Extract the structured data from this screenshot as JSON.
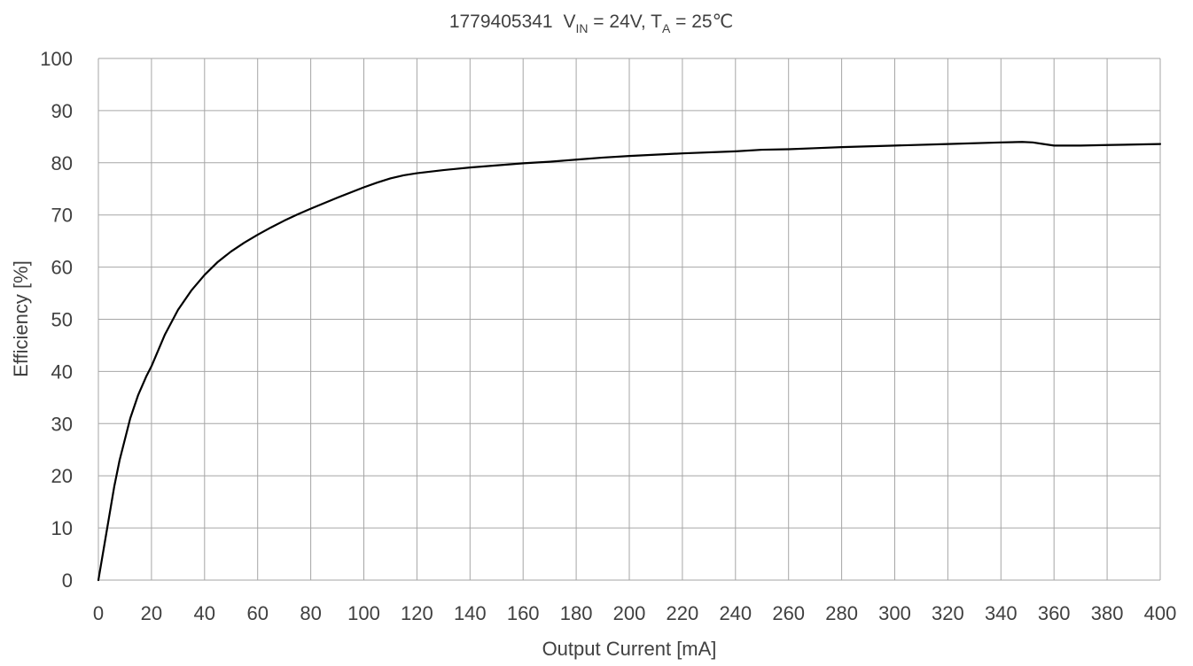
{
  "chart_data": {
    "type": "line",
    "title": {
      "id": "1779405341",
      "v_label": "V",
      "v_sub": "IN",
      "v_value": " = 24V, ",
      "t_label": "T",
      "t_sub": "A",
      "t_value": " = 25℃"
    },
    "xlabel": "Output Current [mA]",
    "ylabel": "Efficiency [%]",
    "xlim": [
      0,
      400
    ],
    "ylim": [
      0,
      100
    ],
    "x_ticks": [
      0,
      20,
      40,
      60,
      80,
      100,
      120,
      140,
      160,
      180,
      200,
      220,
      240,
      260,
      280,
      300,
      320,
      340,
      360,
      380,
      400
    ],
    "y_ticks": [
      0,
      10,
      20,
      30,
      40,
      50,
      60,
      70,
      80,
      90,
      100
    ],
    "grid": true,
    "series": [
      {
        "color": "#000000",
        "x": [
          0,
          2,
          4,
          6,
          8,
          10,
          12,
          15,
          18,
          20,
          25,
          30,
          35,
          40,
          45,
          50,
          55,
          60,
          65,
          70,
          75,
          80,
          90,
          100,
          105,
          110,
          115,
          120,
          130,
          140,
          150,
          160,
          170,
          180,
          190,
          200,
          220,
          240,
          250,
          260,
          270,
          280,
          300,
          320,
          340,
          348,
          352,
          356,
          360,
          365,
          370,
          380,
          400
        ],
        "y": [
          0,
          6,
          12,
          18,
          23,
          27,
          31,
          35.5,
          39,
          41,
          47,
          51.8,
          55.5,
          58.5,
          61,
          63,
          64.7,
          66.2,
          67.6,
          68.9,
          70.1,
          71.2,
          73.3,
          75.3,
          76.2,
          77,
          77.6,
          78,
          78.6,
          79.1,
          79.5,
          79.9,
          80.2,
          80.6,
          81,
          81.3,
          81.8,
          82.2,
          82.5,
          82.6,
          82.8,
          83,
          83.3,
          83.6,
          83.9,
          84,
          83.9,
          83.6,
          83.3,
          83.3,
          83.3,
          83.4,
          83.6
        ]
      }
    ]
  }
}
